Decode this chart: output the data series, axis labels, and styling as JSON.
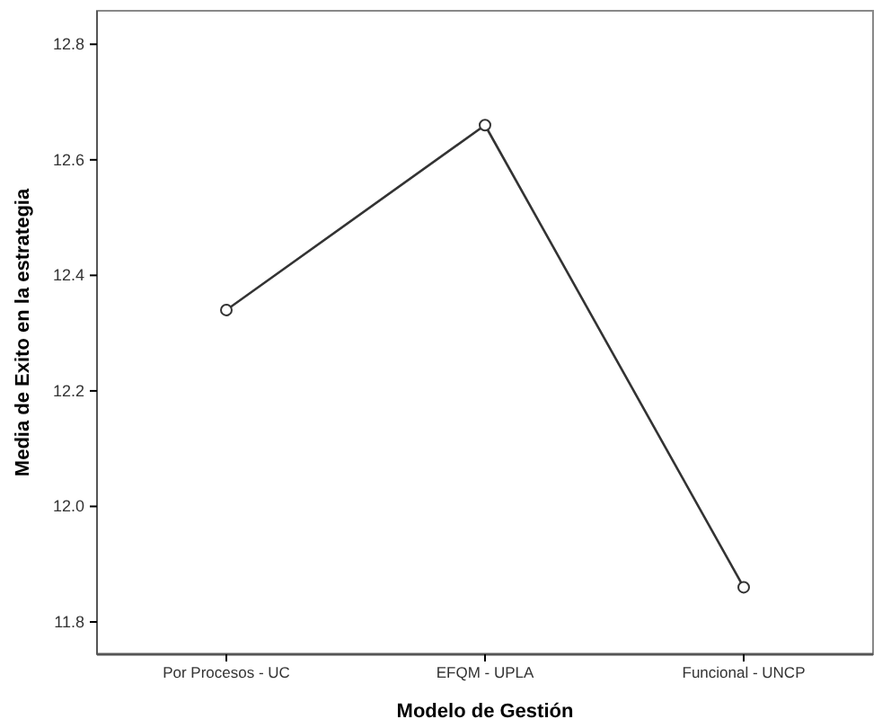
{
  "chart_data": {
    "type": "line",
    "xlabel": "Modelo de Gestión",
    "ylabel": "Media de Exito en la estrategia",
    "categories": [
      "Por Procesos - UC",
      "EFQM - UPLA",
      "Funcional - UNCP"
    ],
    "series": [
      {
        "color": "#333333",
        "values": [
          12.34,
          12.66,
          11.86
        ]
      }
    ],
    "ylim": [
      11.744,
      12.858
    ],
    "yticks": [
      {
        "value": 11.8,
        "label": "11.8"
      },
      {
        "value": 12.0,
        "label": "12.0"
      },
      {
        "value": 12.2,
        "label": "12.2"
      },
      {
        "value": 12.4,
        "label": "12.4"
      },
      {
        "value": 12.6,
        "label": "12.6"
      },
      {
        "value": 12.8,
        "label": "12.8"
      }
    ],
    "grid": false,
    "marker": "circle",
    "line_style": "solid"
  }
}
